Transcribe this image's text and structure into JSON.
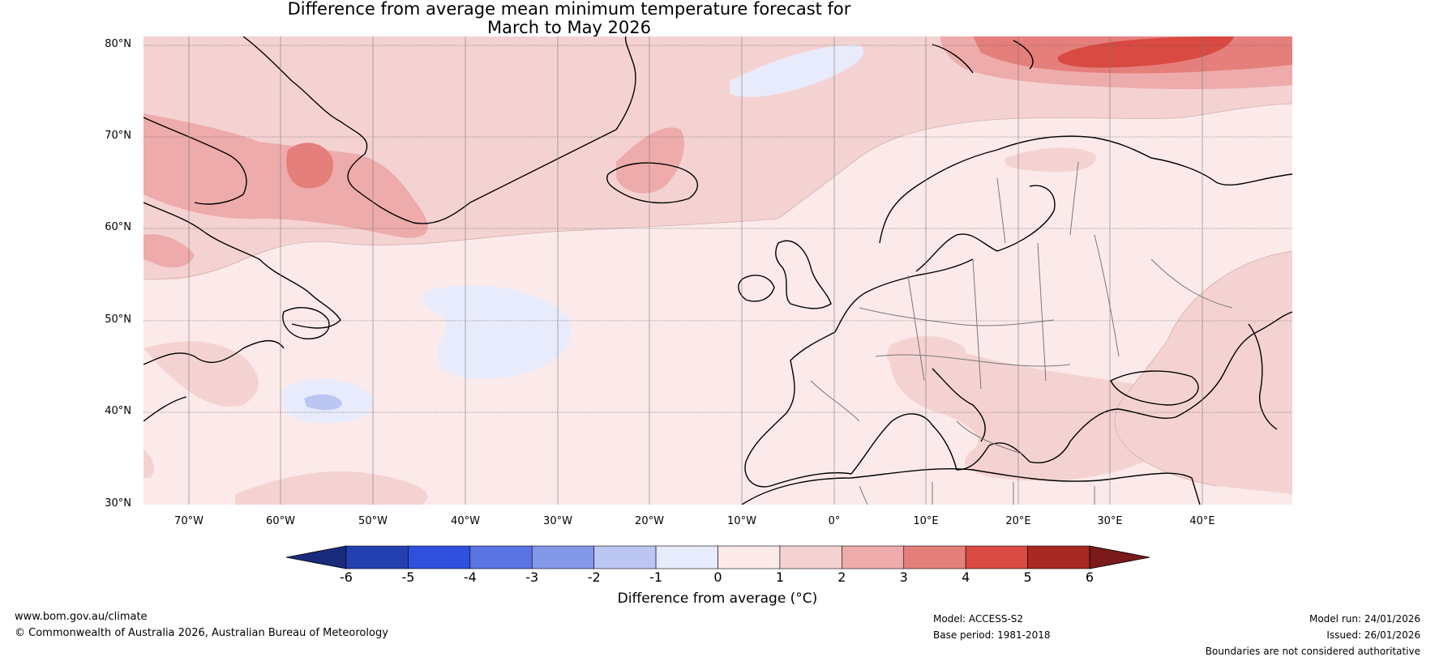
{
  "title": {
    "line1": "Difference from average mean minimum temperature forecast for",
    "line2": "March to May 2026"
  },
  "axes": {
    "lat_labels": [
      "80°N",
      "70°N",
      "60°N",
      "50°N",
      "40°N",
      "30°N"
    ],
    "lon_labels": [
      "70°W",
      "60°W",
      "50°W",
      "40°W",
      "30°W",
      "20°W",
      "10°W",
      "0°",
      "10°E",
      "20°E",
      "30°E",
      "40°E"
    ]
  },
  "colorbar": {
    "ticks": [
      "-6",
      "-5",
      "-4",
      "-3",
      "-2",
      "-1",
      "0",
      "1",
      "2",
      "3",
      "4",
      "5",
      "6"
    ],
    "title": "Difference from average (°C)",
    "colors": [
      "#1a2a7d",
      "#2440b0",
      "#2f4fdc",
      "#5a74e4",
      "#8498ea",
      "#bcc6f2",
      "#e8ebfb",
      "#fceaea",
      "#f5d2d2",
      "#eeabab",
      "#e57f7b",
      "#d84a42",
      "#a82924",
      "#7a1a1a"
    ]
  },
  "colors": {
    "land_outline": "#000000",
    "border": "#777777",
    "grid": "#444444"
  },
  "footer": {
    "url": "www.bom.gov.au/climate",
    "copyright": "© Commonwealth of Australia 2026, Australian Bureau of Meteorology",
    "model": "Model: ACCESS-S2",
    "base_period": "Base period: 1981-2018",
    "model_run": "Model run: 24/01/2026",
    "issued": "Issued: 26/01/2026",
    "disclaimer": "Boundaries are not considered authoritative"
  }
}
